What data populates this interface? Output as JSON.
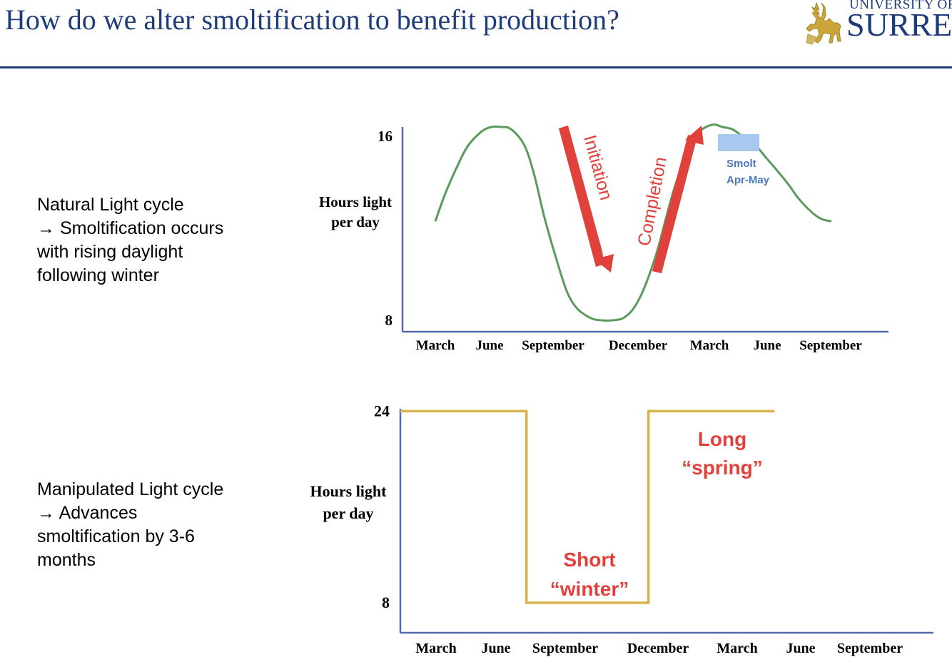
{
  "slide": {
    "title": "How do we alter smoltification to benefit production?"
  },
  "logo": {
    "line1": "UNIVERSITY OF",
    "line2": "SURREY",
    "icon": "stag-logo-icon"
  },
  "natural_text": [
    "Natural Light cycle",
    "→ Smoltification occurs",
    "with rising daylight",
    "following winter"
  ],
  "manipulated_text": [
    "Manipulated Light cycle",
    "→ Advances",
    "smoltification by 3-6",
    "months"
  ],
  "colors": {
    "title": "#1f3c7a",
    "axis": "#5468b0",
    "natural_curve": "#5a9a5a",
    "manipulated_line": "#d8b24a",
    "arrow": "#e0413a",
    "label_red": "#e0413a",
    "smolt_box": "#a9c8ef",
    "smolt_text": "#4a78c0"
  },
  "chart_data": [
    {
      "type": "line",
      "ylabel": [
        "Hours light",
        "per day"
      ],
      "yticks": [
        16,
        8
      ],
      "ylim": [
        7.5,
        16.4
      ],
      "categories": [
        "March",
        "June",
        "September",
        "December",
        "March",
        "June",
        "September"
      ],
      "series": [
        {
          "x": [
            0,
            0.15,
            0.35,
            0.5,
            0.7,
            0.85,
            1.0,
            1.15,
            1.35,
            1.5,
            1.65,
            1.85,
            2.0,
            2.15,
            2.35,
            2.5,
            2.7,
            2.85,
            3.0,
            3.15,
            3.35,
            3.5,
            3.65,
            3.85,
            4.0,
            4.2,
            4.35,
            4.5,
            4.65,
            4.85,
            5.0,
            5.15,
            5.35,
            5.5,
            5.7,
            5.85,
            6.0
          ],
          "y": [
            12.3,
            13.5,
            14.8,
            15.6,
            16.2,
            16.4,
            16.4,
            16.3,
            15.6,
            14.3,
            12.5,
            10.5,
            9.2,
            8.5,
            8.1,
            8.0,
            8.0,
            8.1,
            8.5,
            9.3,
            10.9,
            12.5,
            14.0,
            15.5,
            16.2,
            16.5,
            16.4,
            16.3,
            16.0,
            15.6,
            15.1,
            14.6,
            13.9,
            13.3,
            12.7,
            12.4,
            12.3
          ]
        }
      ],
      "annotations": {
        "initiation": "Initiation",
        "completion": "Completion",
        "smolt_line1": "Smolt",
        "smolt_line2": "Apr-May"
      }
    },
    {
      "type": "line",
      "ylabel": [
        "Hours light",
        "per day"
      ],
      "yticks": [
        24,
        8
      ],
      "ylim": [
        5.5,
        24.2
      ],
      "categories": [
        "March",
        "June",
        "September",
        "December",
        "March",
        "June",
        "September"
      ],
      "series": [
        {
          "x": [
            0,
            1.55,
            1.55,
            3.05,
            3.05,
            4.6
          ],
          "y": [
            24,
            24,
            8,
            8,
            24,
            24
          ]
        }
      ],
      "annotations": {
        "short_line1": "Short",
        "short_line2": "“winter”",
        "long_line1": "Long",
        "long_line2": "“spring”"
      }
    }
  ]
}
